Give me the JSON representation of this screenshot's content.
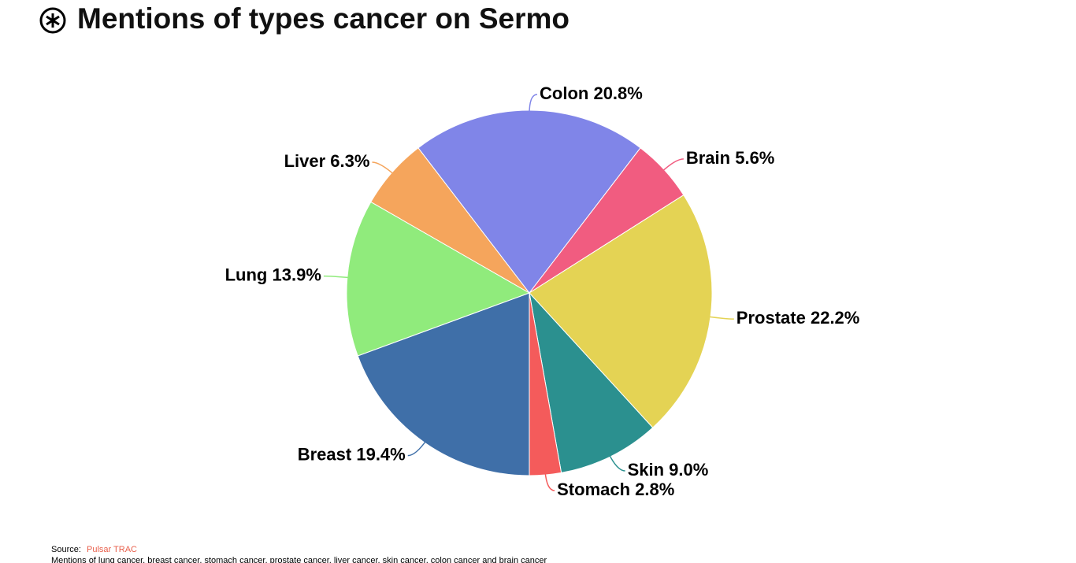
{
  "chart_data": {
    "type": "pie",
    "title": "Mentions of types cancer on Sermo",
    "categories": [
      "Breast",
      "Lung",
      "Liver",
      "Colon",
      "Brain",
      "Prostate",
      "Skin",
      "Stomach"
    ],
    "values": [
      19.4,
      13.9,
      6.3,
      20.8,
      5.6,
      22.2,
      9.0,
      2.8
    ],
    "value_labels": [
      "19.4%",
      "13.9%",
      "6.3%",
      "20.8%",
      "5.6%",
      "22.2%",
      "9.0%",
      "2.8%"
    ],
    "colors": [
      "#3f6fa8",
      "#90eb7c",
      "#f5a55c",
      "#8085e8",
      "#f15c80",
      "#e4d354",
      "#2b908f",
      "#f45b5b"
    ],
    "source_label": "Source:",
    "source": "Pulsar TRAC",
    "note": "Mentions of lung cancer, breast cancer, stomach cancer, prostate cancer, liver cancer, skin cancer, colon cancer and brain cancer"
  }
}
